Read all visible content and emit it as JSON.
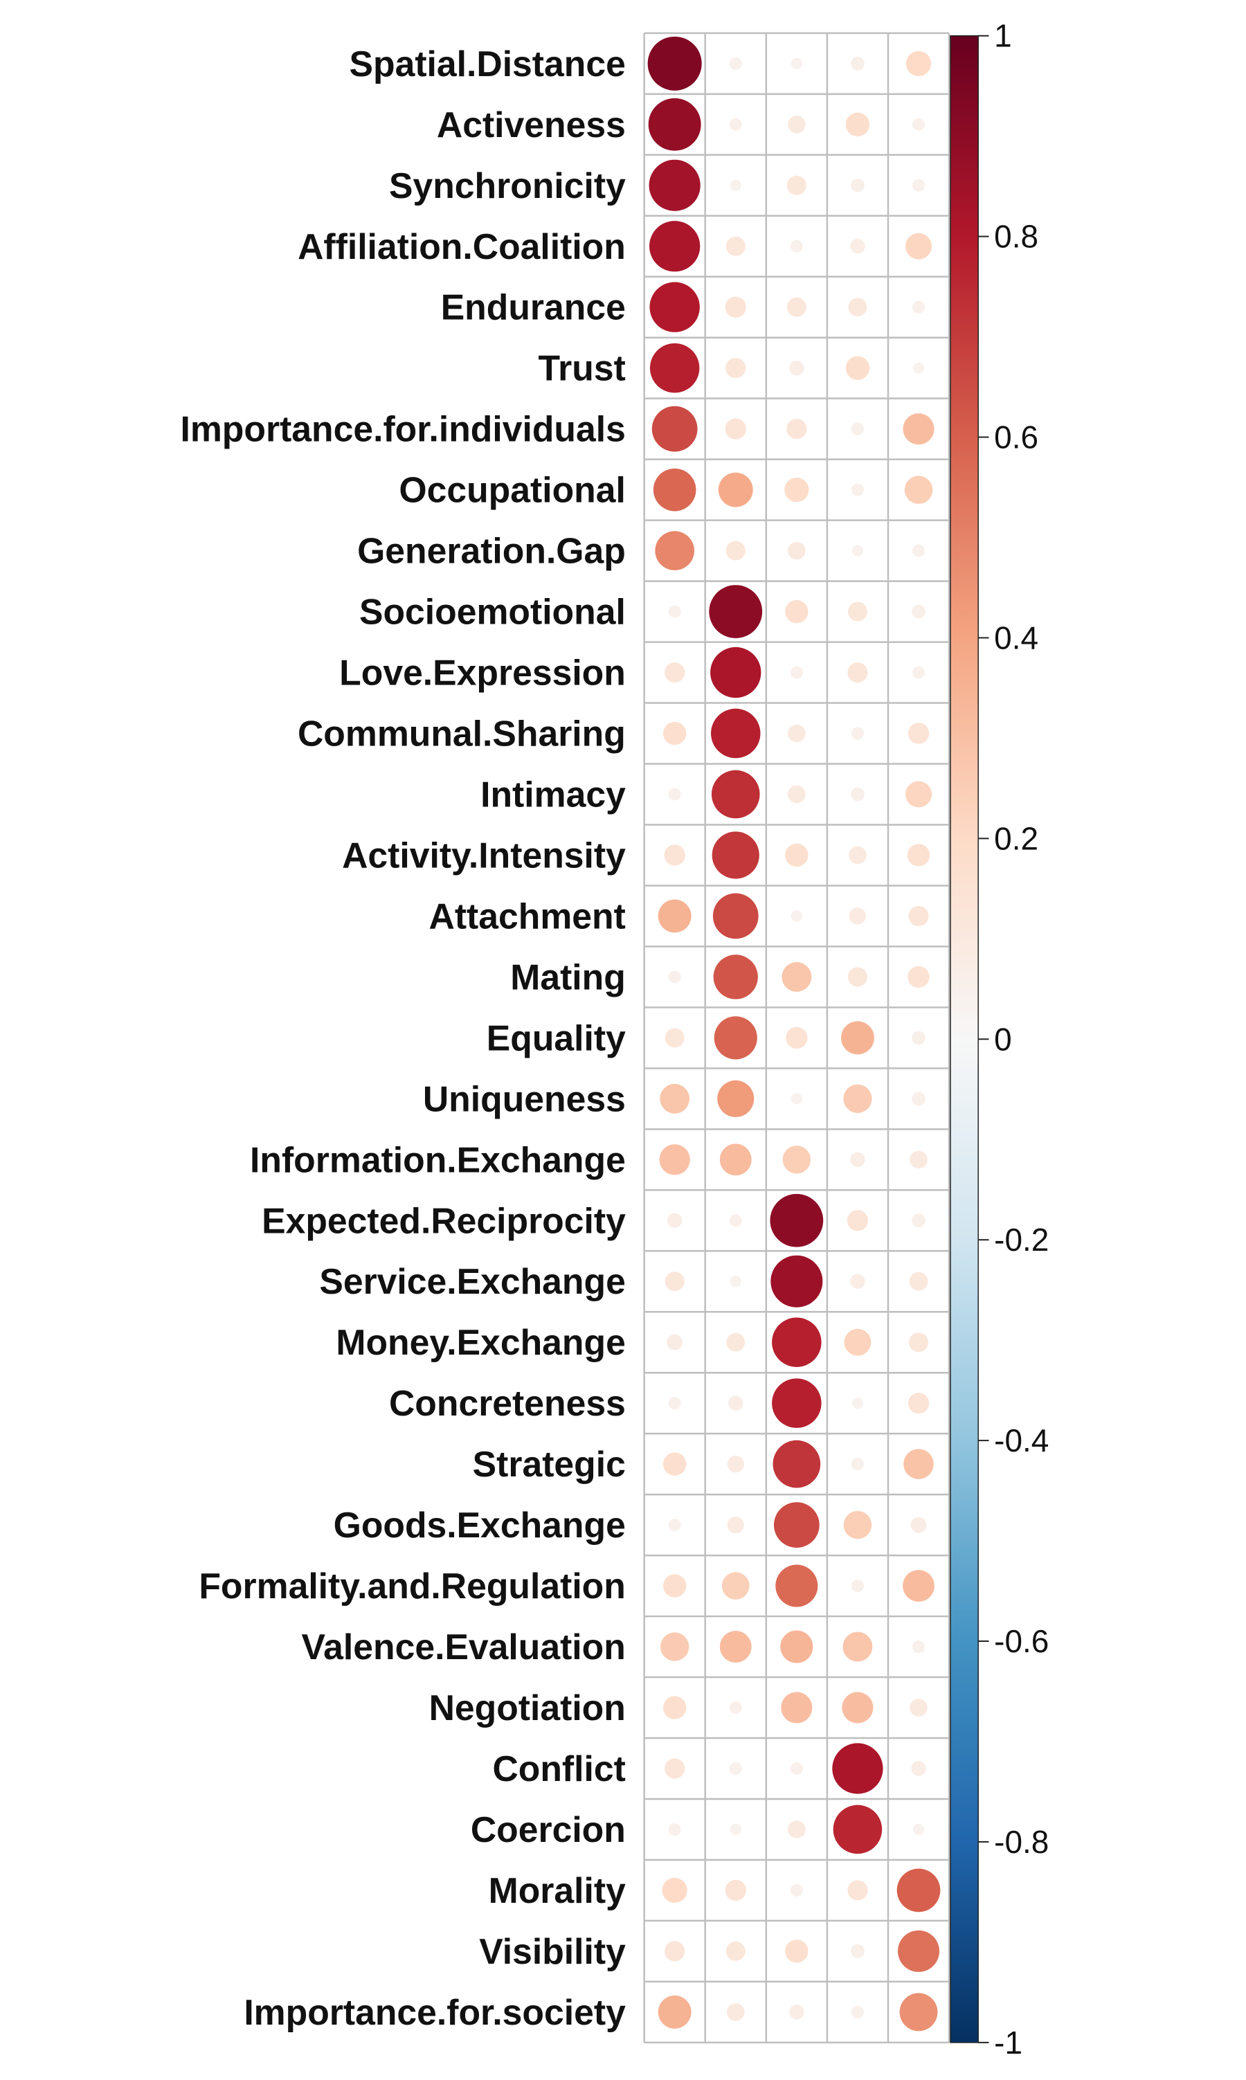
{
  "chart_data": {
    "type": "heatmap",
    "subtype": "correlation-circles",
    "title": "",
    "xlabel": "",
    "ylabel": "",
    "columns": [
      "",
      "",
      "",
      "",
      ""
    ],
    "rows": [
      "Spatial.Distance",
      "Activeness",
      "Synchronicity",
      "Affiliation.Coalition",
      "Endurance",
      "Trust",
      "Importance.for.individuals",
      "Occupational",
      "Generation.Gap",
      "Socioemotional",
      "Love.Expression",
      "Communal.Sharing",
      "Intimacy",
      "Activity.Intensity",
      "Attachment",
      "Mating",
      "Equality",
      "Uniqueness",
      "Information.Exchange",
      "Expected.Reciprocity",
      "Service.Exchange",
      "Money.Exchange",
      "Concreteness",
      "Strategic",
      "Goods.Exchange",
      "Formality.and.Regulation",
      "Valence.Evaluation",
      "Negotiation",
      "Conflict",
      "Coercion",
      "Morality",
      "Visibility",
      "Importance.for.society"
    ],
    "values": [
      [
        0.93,
        0.05,
        0.04,
        0.06,
        0.2
      ],
      [
        0.88,
        0.05,
        0.1,
        0.18,
        0.05
      ],
      [
        0.84,
        0.04,
        0.12,
        0.06,
        0.05
      ],
      [
        0.82,
        0.12,
        0.05,
        0.07,
        0.22
      ],
      [
        0.8,
        0.14,
        0.12,
        0.11,
        0.05
      ],
      [
        0.78,
        0.13,
        0.07,
        0.18,
        0.04
      ],
      [
        0.66,
        0.14,
        0.13,
        0.05,
        0.31
      ],
      [
        0.58,
        0.38,
        0.19,
        0.05,
        0.25
      ],
      [
        0.49,
        0.12,
        0.1,
        0.04,
        0.05
      ],
      [
        0.05,
        0.9,
        0.17,
        0.12,
        0.06
      ],
      [
        0.13,
        0.82,
        0.05,
        0.13,
        0.05
      ],
      [
        0.17,
        0.78,
        0.1,
        0.05,
        0.14
      ],
      [
        0.05,
        0.74,
        0.1,
        0.06,
        0.22
      ],
      [
        0.14,
        0.71,
        0.17,
        0.1,
        0.16
      ],
      [
        0.35,
        0.66,
        0.04,
        0.09,
        0.13
      ],
      [
        0.05,
        0.63,
        0.28,
        0.12,
        0.15
      ],
      [
        0.12,
        0.59,
        0.15,
        0.35,
        0.06
      ],
      [
        0.28,
        0.43,
        0.04,
        0.26,
        0.06
      ],
      [
        0.3,
        0.32,
        0.25,
        0.07,
        0.1
      ],
      [
        0.07,
        0.05,
        0.9,
        0.14,
        0.06
      ],
      [
        0.12,
        0.04,
        0.86,
        0.07,
        0.11
      ],
      [
        0.08,
        0.11,
        0.78,
        0.23,
        0.12
      ],
      [
        0.05,
        0.07,
        0.78,
        0.04,
        0.14
      ],
      [
        0.17,
        0.09,
        0.72,
        0.05,
        0.29
      ],
      [
        0.05,
        0.09,
        0.66,
        0.25,
        0.08
      ],
      [
        0.17,
        0.24,
        0.57,
        0.05,
        0.32
      ],
      [
        0.26,
        0.32,
        0.34,
        0.28,
        0.05
      ],
      [
        0.17,
        0.05,
        0.31,
        0.31,
        0.1
      ],
      [
        0.13,
        0.05,
        0.05,
        0.82,
        0.07
      ],
      [
        0.05,
        0.04,
        0.1,
        0.76,
        0.04
      ],
      [
        0.2,
        0.14,
        0.05,
        0.13,
        0.6
      ],
      [
        0.13,
        0.12,
        0.17,
        0.06,
        0.55
      ],
      [
        0.35,
        0.1,
        0.07,
        0.05,
        0.46
      ]
    ],
    "colorbar": {
      "range": [
        -1,
        1
      ],
      "ticks": [
        "1",
        "0.8",
        "0.6",
        "0.4",
        "0.2",
        "0",
        "-0.2",
        "-0.4",
        "-0.6",
        "-0.8",
        "-1"
      ],
      "tick_values": [
        1,
        0.8,
        0.6,
        0.4,
        0.2,
        0,
        -0.2,
        -0.4,
        -0.6,
        -0.8,
        -1
      ],
      "colors": [
        "#67001F",
        "#B2182B",
        "#D6604D",
        "#F4A582",
        "#FDDBC7",
        "#F7F7F7",
        "#D1E5F0",
        "#92C5DE",
        "#4393C3",
        "#2166AC",
        "#053061"
      ],
      "color_stops": [
        1,
        0.8,
        0.6,
        0.4,
        0.2,
        0,
        -0.2,
        -0.4,
        -0.6,
        -0.8,
        -1
      ]
    },
    "grid_color": "#BEBEBE",
    "legend": "right"
  }
}
